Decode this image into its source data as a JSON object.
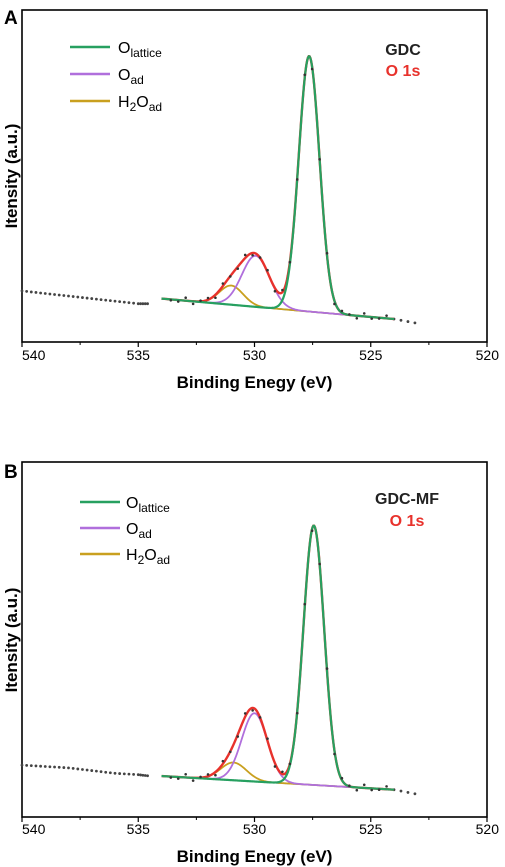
{
  "chart_data": [
    {
      "type": "line",
      "panel_label": "A",
      "xlabel": "Binding Enegy (eV)",
      "ylabel": "Itensity (a.u.)",
      "xlim": [
        540,
        520
      ],
      "x_ticks": [
        "540",
        "535",
        "530",
        "525",
        "520"
      ],
      "sample": "GDC",
      "orbital": "O 1s",
      "legend": [
        {
          "main": "O",
          "sub": "lattice",
          "post": "",
          "post_sub": "",
          "color": "#27a060"
        },
        {
          "main": "O",
          "sub": "ad",
          "post": "",
          "post_sub": "",
          "color": "#b06fdc"
        },
        {
          "main": "H",
          "sub": "2",
          "post": "O",
          "post_sub": "ad",
          "color": "#c9a01f"
        }
      ],
      "baseline": {
        "x": [
          534,
          524
        ],
        "y": [
          0.02,
          -0.06
        ]
      },
      "peaks": [
        {
          "center": 527.65,
          "height": 1.0,
          "fwhm": 1.05,
          "color": "#27a060"
        },
        {
          "center": 529.95,
          "height": 0.2,
          "fwhm": 1.4,
          "color": "#b06fdc"
        },
        {
          "center": 531.0,
          "height": 0.075,
          "fwhm": 1.2,
          "color": "#c9a01f"
        }
      ],
      "ylim": [
        -0.15,
        1.15
      ],
      "envelope_color": "#e8322c",
      "baseline_color": "#2f6fd0",
      "dotted_tail": {
        "x": [
          540,
          539,
          538,
          537,
          536,
          535,
          534.5
        ],
        "y": [
          0.05,
          0.04,
          0.03,
          0.02,
          0.01,
          0.0,
          0.0
        ]
      },
      "dotted_end": {
        "x": [
          524,
          523.7,
          523.4,
          523.1
        ],
        "y": [
          -0.06,
          -0.065,
          -0.07,
          -0.075
        ]
      }
    },
    {
      "type": "line",
      "panel_label": "B",
      "xlabel": "Binding Enegy (eV)",
      "ylabel": "Itensity (a.u.)",
      "xlim": [
        540,
        520
      ],
      "x_ticks": [
        "540",
        "535",
        "530",
        "525",
        "520"
      ],
      "sample": "GDC-MF",
      "orbital": "O 1s",
      "legend": [
        {
          "main": "O",
          "sub": "lattice",
          "post": "",
          "post_sub": "",
          "color": "#27a060"
        },
        {
          "main": "O",
          "sub": "ad",
          "post": "",
          "post_sub": "",
          "color": "#b06fdc"
        },
        {
          "main": "H",
          "sub": "2",
          "post": "O",
          "post_sub": "ad",
          "color": "#c9a01f"
        }
      ],
      "baseline": {
        "x": [
          534,
          524
        ],
        "y": [
          0.0,
          -0.05
        ]
      },
      "peaks": [
        {
          "center": 527.45,
          "height": 0.95,
          "fwhm": 1.05,
          "color": "#27a060"
        },
        {
          "center": 530.0,
          "height": 0.25,
          "fwhm": 1.3,
          "color": "#b06fdc"
        },
        {
          "center": 530.9,
          "height": 0.065,
          "fwhm": 1.3,
          "color": "#c9a01f"
        }
      ],
      "ylim": [
        -0.15,
        1.15
      ],
      "envelope_color": "#e8322c",
      "baseline_color": "#2f6fd0",
      "dotted_tail": {
        "x": [
          540,
          539,
          538,
          537,
          536,
          535,
          534.5
        ],
        "y": [
          0.04,
          0.035,
          0.03,
          0.02,
          0.01,
          0.005,
          0.0
        ]
      },
      "dotted_end": {
        "x": [
          524,
          523.7,
          523.4,
          523.1
        ],
        "y": [
          -0.05,
          -0.055,
          -0.06,
          -0.065
        ]
      }
    }
  ]
}
